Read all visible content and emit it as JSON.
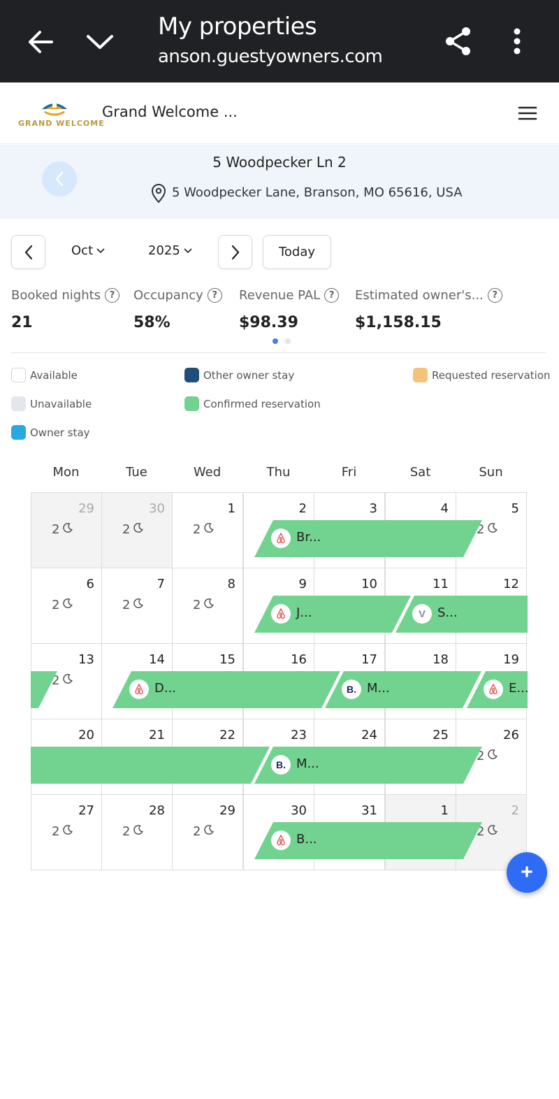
{
  "browser": {
    "title": "My properties",
    "url": "anson.guestyowners.com"
  },
  "app": {
    "brand_name": "Grand Welcome ...",
    "logo_text": "GRAND WELCOME"
  },
  "property": {
    "name": "5 Woodpecker Ln 2",
    "address": "5 Woodpecker Lane, Branson, MO 65616, USA"
  },
  "calendar_controls": {
    "month": "Oct",
    "year": "2025",
    "today_label": "Today"
  },
  "stats": [
    {
      "label": "Booked nights",
      "value": "21"
    },
    {
      "label": "Occupancy",
      "value": "58%"
    },
    {
      "label": "Revenue PAL",
      "value": "$98.39"
    },
    {
      "label": "Estimated owner's...",
      "value": "$1,158.15"
    }
  ],
  "legend": [
    {
      "label": "Available",
      "color": "#ffffff"
    },
    {
      "label": "Other owner stay",
      "color": "#1f4e79"
    },
    {
      "label": "Requested reservation",
      "color": "#f6c27a"
    },
    {
      "label": "Unavailable",
      "color": "#e3e6ec"
    },
    {
      "label": "Confirmed reservation",
      "color": "#72d28f"
    },
    {
      "label": "Owner stay",
      "color": "#2aa8e0"
    }
  ],
  "weekdays": [
    "Mon",
    "Tue",
    "Wed",
    "Thu",
    "Fri",
    "Sat",
    "Sun"
  ],
  "weeks": [
    [
      {
        "day": "29",
        "nights": "2",
        "muted": true
      },
      {
        "day": "30",
        "nights": "2",
        "muted": true
      },
      {
        "day": "1",
        "nights": "2"
      },
      {
        "day": "2"
      },
      {
        "day": "3"
      },
      {
        "day": "4"
      },
      {
        "day": "5",
        "nights": "2"
      }
    ],
    [
      {
        "day": "6",
        "nights": "2"
      },
      {
        "day": "7",
        "nights": "2"
      },
      {
        "day": "8",
        "nights": "2"
      },
      {
        "day": "9"
      },
      {
        "day": "10"
      },
      {
        "day": "11"
      },
      {
        "day": "12"
      }
    ],
    [
      {
        "day": "13",
        "nights": "2"
      },
      {
        "day": "14"
      },
      {
        "day": "15"
      },
      {
        "day": "16"
      },
      {
        "day": "17"
      },
      {
        "day": "18"
      },
      {
        "day": "19"
      }
    ],
    [
      {
        "day": "20"
      },
      {
        "day": "21"
      },
      {
        "day": "22"
      },
      {
        "day": "23"
      },
      {
        "day": "24"
      },
      {
        "day": "25"
      },
      {
        "day": "26",
        "nights": "2"
      }
    ],
    [
      {
        "day": "27",
        "nights": "2"
      },
      {
        "day": "28",
        "nights": "2"
      },
      {
        "day": "29",
        "nights": "2"
      },
      {
        "day": "30"
      },
      {
        "day": "31"
      },
      {
        "day": "1",
        "muted_bg": true
      },
      {
        "day": "2",
        "nights": "2",
        "muted": true,
        "muted_bg": true
      }
    ]
  ],
  "reservations": [
    {
      "guest": "Br...",
      "channel": "airbnb"
    },
    {
      "guest": "J...",
      "channel": "airbnb"
    },
    {
      "guest": "S...",
      "channel": "vrbo"
    },
    {
      "guest": "D...",
      "channel": "airbnb"
    },
    {
      "guest": "M...",
      "channel": "booking",
      "channel_text": "B."
    },
    {
      "guest": "E...",
      "channel": "airbnb"
    },
    {
      "guest": "M...",
      "channel": "booking",
      "channel_text": "B."
    },
    {
      "guest": "B...",
      "channel": "airbnb"
    }
  ],
  "fab_label": "+"
}
